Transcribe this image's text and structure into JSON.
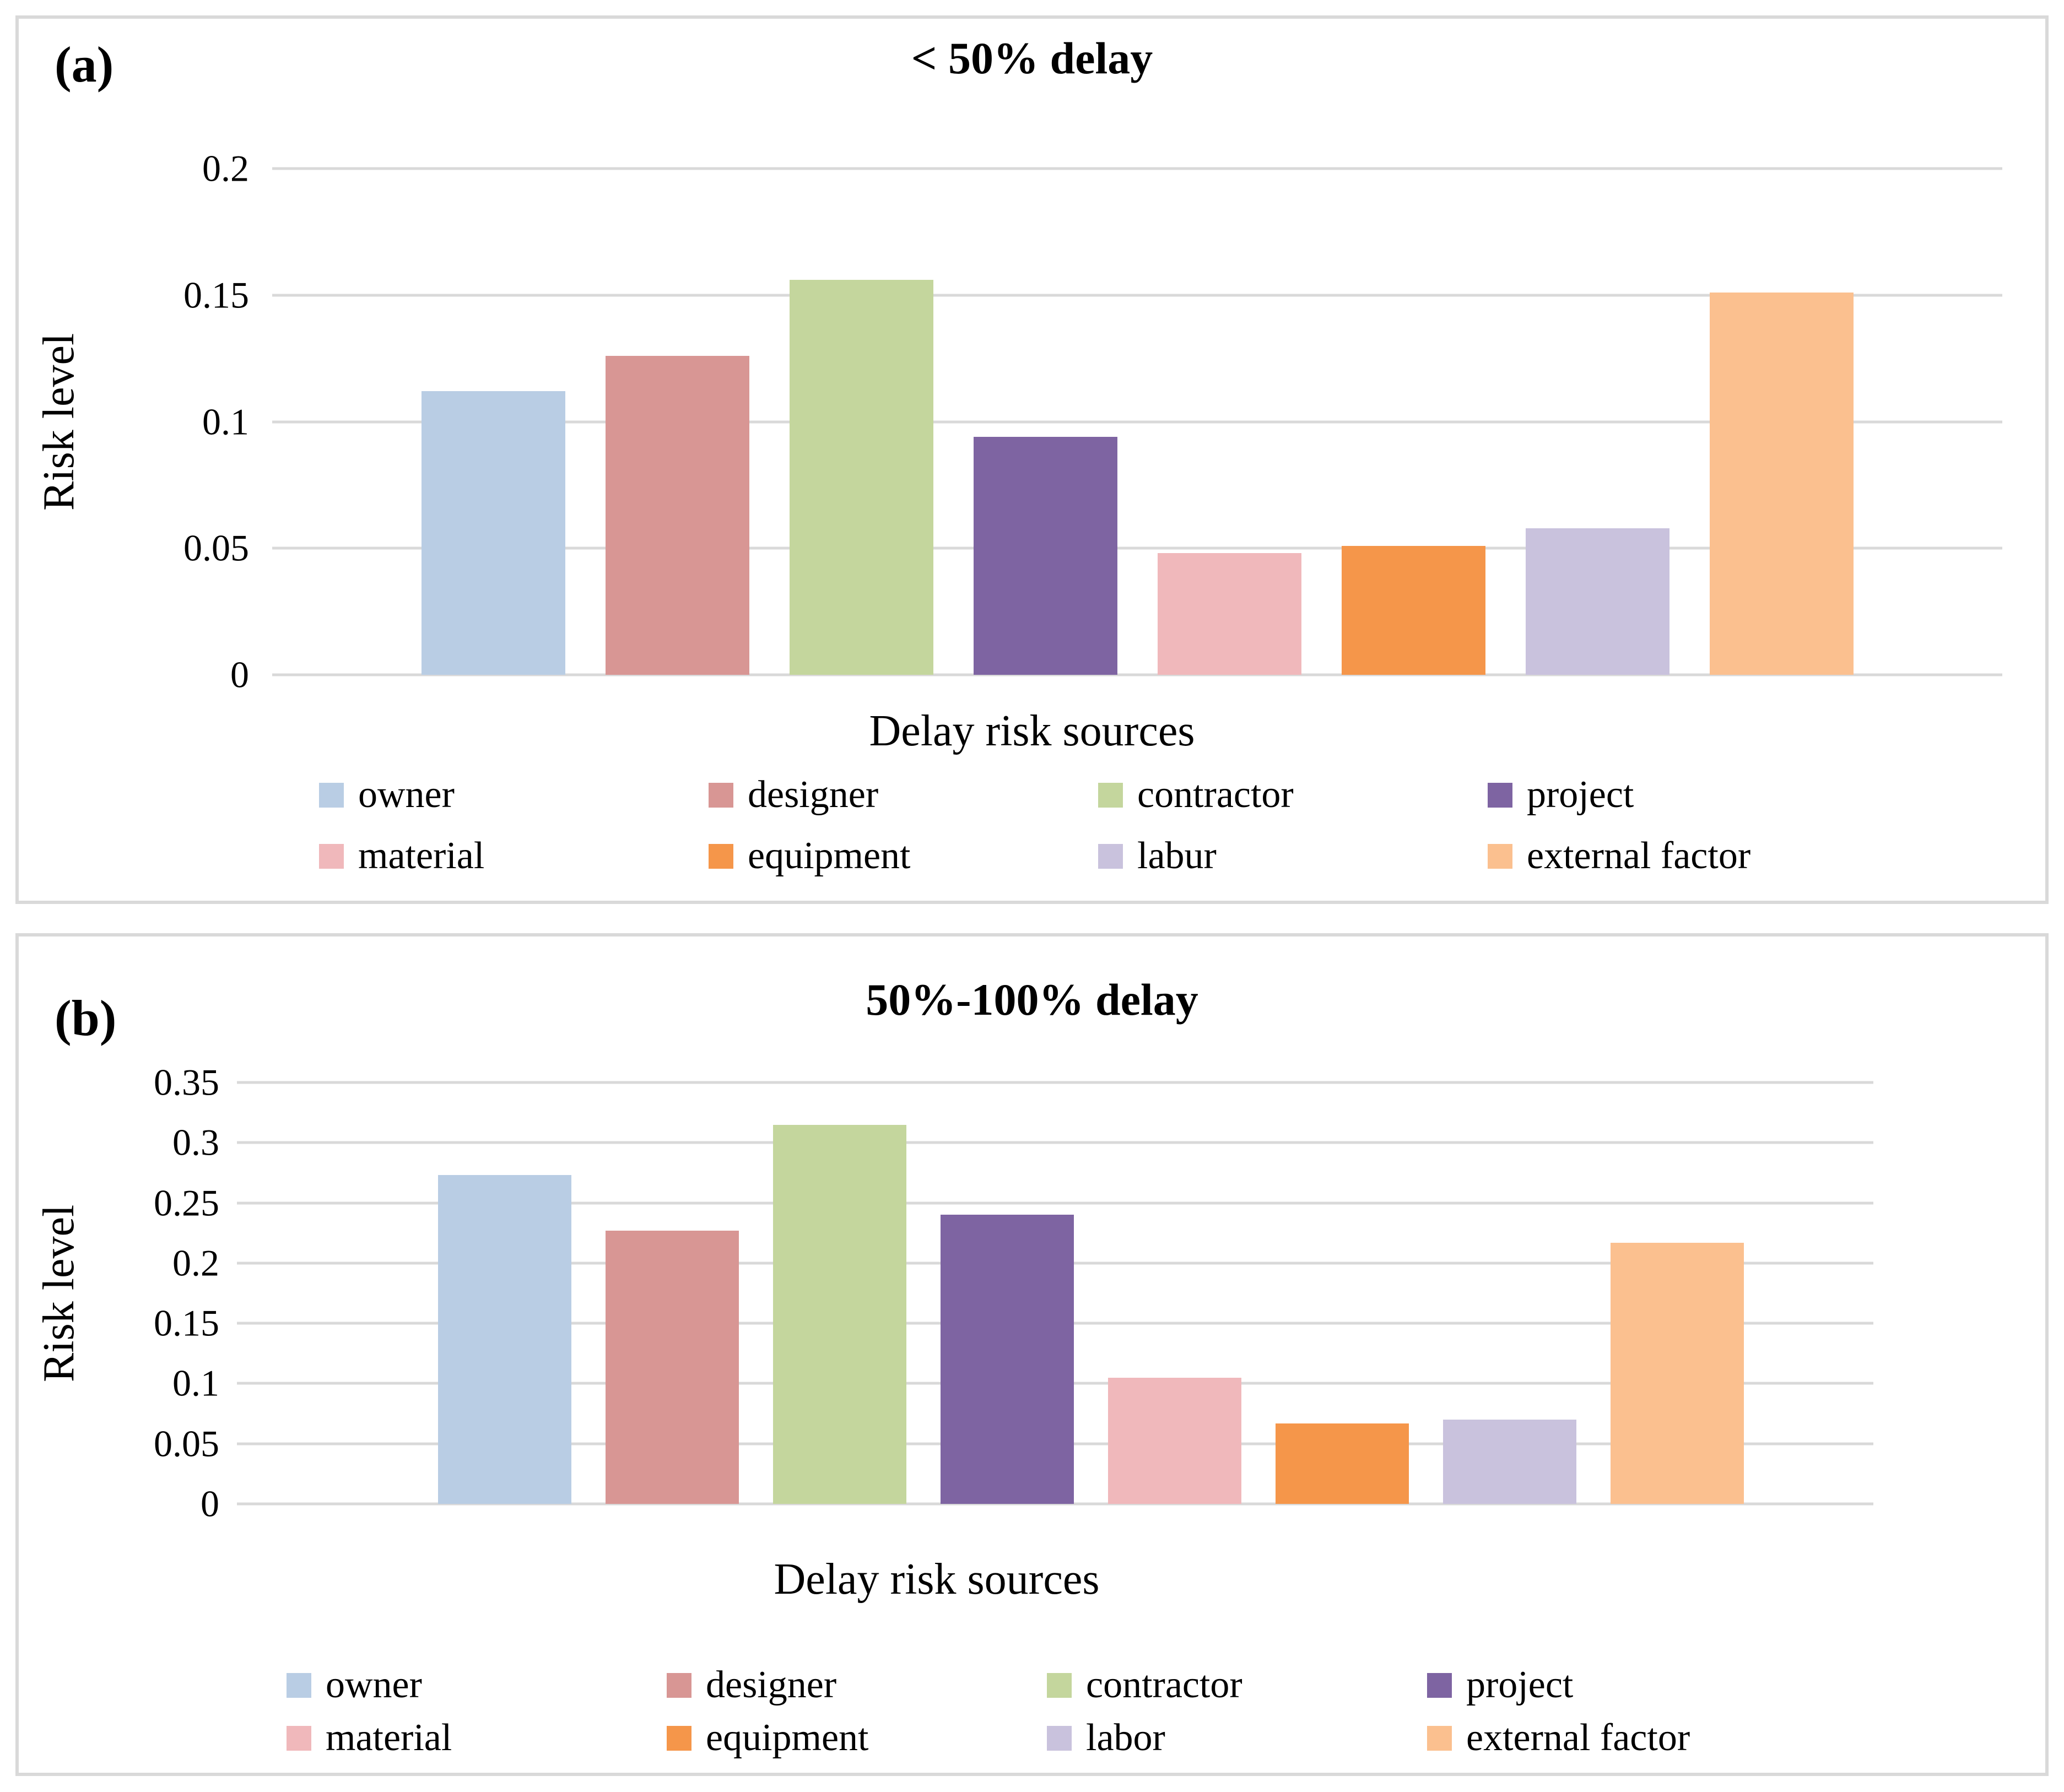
{
  "styles": {
    "background": "#ffffff",
    "panel_border_color": "#d9d9d9",
    "gridline_color": "#d9d9d9",
    "text_color": "#000000"
  },
  "chart_data": [
    {
      "type": "bar",
      "panel_label": "(a)",
      "title": "< 50% delay",
      "xlabel": "Delay risk sources",
      "ylabel": "Risk level",
      "categories": [
        "owner",
        "designer",
        "contractor",
        "project",
        "material",
        "equipment",
        "labur",
        "external factor"
      ],
      "values": [
        0.112,
        0.126,
        0.156,
        0.094,
        0.048,
        0.051,
        0.058,
        0.151
      ],
      "colors": [
        "#b9cde4",
        "#d89694",
        "#c4d69d",
        "#7e64a2",
        "#f0b8bb",
        "#f5964a",
        "#c9c2dd",
        "#fbc08f"
      ],
      "ylim": [
        0,
        0.2
      ],
      "y_ticks": [
        "0.2",
        "0.15",
        "0.1",
        "0.05",
        "0"
      ],
      "grid": true,
      "legend_position": "bottom"
    },
    {
      "type": "bar",
      "panel_label": "(b)",
      "title": "50%-100% delay",
      "xlabel": "Delay risk sources",
      "ylabel": "Risk level",
      "categories": [
        "owner",
        "designer",
        "contractor",
        "project",
        "material",
        "equipment",
        "labor",
        "external factor"
      ],
      "values": [
        0.273,
        0.227,
        0.315,
        0.24,
        0.105,
        0.067,
        0.07,
        0.217
      ],
      "colors": [
        "#b9cde4",
        "#d89694",
        "#c4d69d",
        "#7e64a2",
        "#f0b8bb",
        "#f5964a",
        "#c9c2dd",
        "#fbc08f"
      ],
      "ylim": [
        0,
        0.35
      ],
      "y_ticks": [
        "0.35",
        "0.3",
        "0.25",
        "0.2",
        "0.15",
        "0.1",
        "0.05",
        "0"
      ],
      "grid": true,
      "legend_position": "bottom"
    }
  ]
}
